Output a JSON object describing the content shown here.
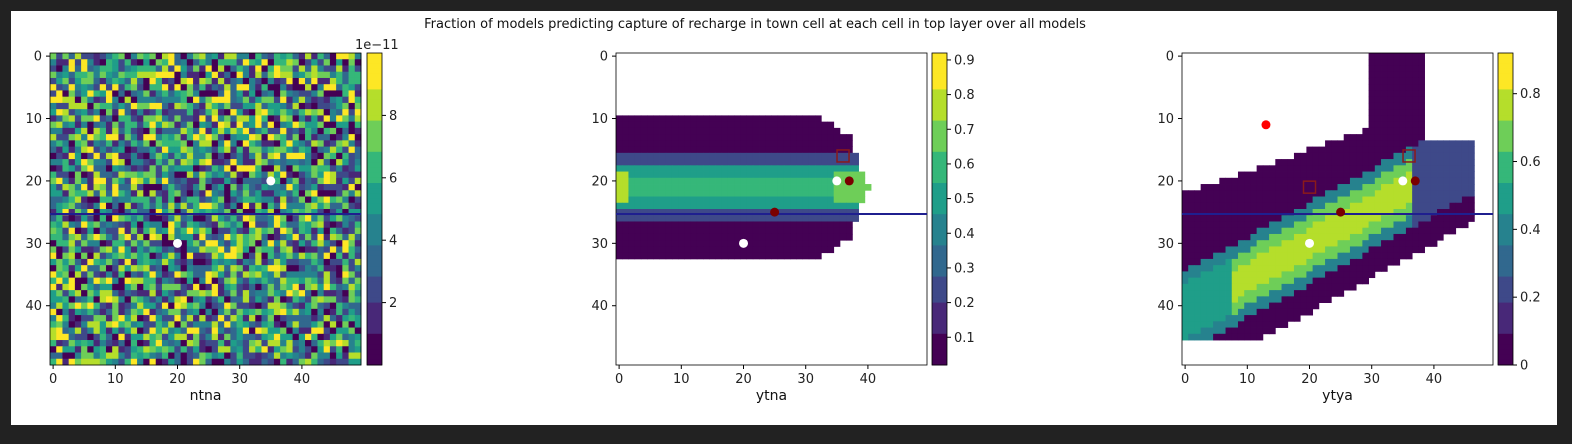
{
  "figure": {
    "title": "Fraction of models predicting capture of recharge in town cell at each cell in top layer over all models"
  },
  "colormap": [
    "#440154",
    "#482878",
    "#3e4989",
    "#31688e",
    "#26828e",
    "#1f9e89",
    "#35b779",
    "#6ece58",
    "#b5de2b",
    "#fde725"
  ],
  "marker_colors": {
    "white": "#ffffff",
    "darkred": "#7a0000",
    "red": "#ff0000",
    "hline": "#1f1f8f",
    "square": "#8b1a1a"
  },
  "chart_data": [
    {
      "type": "heatmap",
      "xlabel": "ntna",
      "grid_size": 50,
      "xlim": [
        0,
        49
      ],
      "ylim": [
        49,
        0
      ],
      "xticks": [
        0,
        10,
        20,
        30,
        40
      ],
      "yticks": [
        0,
        10,
        20,
        30,
        40
      ],
      "pattern": "random",
      "colorbar": {
        "ticks": [
          2,
          4,
          6,
          8
        ],
        "min": 0,
        "max": 10,
        "exponent_label": "1e−11"
      },
      "markers": [
        {
          "x": 35,
          "y": 20,
          "color": "white"
        },
        {
          "x": 20,
          "y": 30,
          "color": "white"
        }
      ],
      "hline_y": 25.3
    },
    {
      "type": "heatmap",
      "xlabel": "ytna",
      "grid_size": 50,
      "xlim": [
        0,
        49
      ],
      "ylim": [
        49,
        0
      ],
      "xticks": [
        0,
        10,
        20,
        30,
        40
      ],
      "yticks": [
        0,
        10,
        20,
        30,
        40
      ],
      "pattern": "plume_horizontal",
      "colorbar": {
        "ticks": [
          0.1,
          0.2,
          0.3,
          0.4,
          0.5,
          0.6,
          0.7,
          0.8,
          0.9
        ],
        "min": 0.02,
        "max": 0.92
      },
      "markers": [
        {
          "x": 35,
          "y": 20,
          "color": "white"
        },
        {
          "x": 20,
          "y": 30,
          "color": "white"
        },
        {
          "x": 37,
          "y": 20,
          "color": "darkred"
        },
        {
          "x": 25,
          "y": 25,
          "color": "darkred"
        }
      ],
      "squares": [
        {
          "x": 36,
          "y": 16
        }
      ],
      "hline_y": 25.3
    },
    {
      "type": "heatmap",
      "xlabel": "ytya",
      "grid_size": 50,
      "xlim": [
        0,
        49
      ],
      "ylim": [
        49,
        0
      ],
      "xticks": [
        0,
        10,
        20,
        30,
        40
      ],
      "yticks": [
        0,
        10,
        20,
        30,
        40
      ],
      "pattern": "plume_diagonal",
      "colorbar": {
        "ticks": [
          0.0,
          0.2,
          0.4,
          0.6,
          0.8
        ],
        "min": 0.0,
        "max": 0.92
      },
      "markers": [
        {
          "x": 13,
          "y": 11,
          "color": "red"
        },
        {
          "x": 35,
          "y": 20,
          "color": "white"
        },
        {
          "x": 20,
          "y": 30,
          "color": "white"
        },
        {
          "x": 37,
          "y": 20,
          "color": "darkred"
        },
        {
          "x": 25,
          "y": 25,
          "color": "darkred"
        }
      ],
      "squares": [
        {
          "x": 36,
          "y": 16
        },
        {
          "x": 20,
          "y": 21
        }
      ],
      "hline_y": 25.3
    }
  ]
}
